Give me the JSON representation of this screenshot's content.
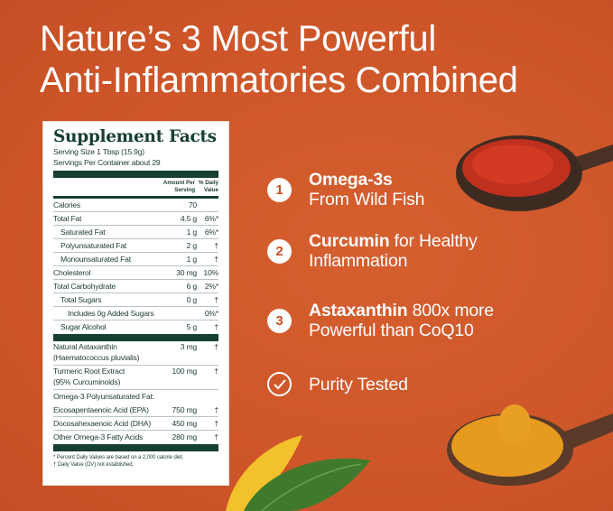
{
  "headline": {
    "line1": "Nature’s 3 Most Powerful",
    "line2": "Anti-Inflammatories Combined"
  },
  "colors": {
    "background": "#d0592b",
    "panel_green": "#163f33",
    "text": "#ffffff"
  },
  "facts": {
    "title": "Supplement Facts",
    "serving_size": "Serving Size 1 Tbsp (15.9g)",
    "servings_per_container": "Servings Per Container about 29",
    "col_amount": "Amount Per Serving",
    "col_dv": "% Daily Value",
    "rows": [
      {
        "name": "Calories",
        "amount": "70",
        "dv": ""
      },
      {
        "name": "Total Fat",
        "amount": "4.5 g",
        "dv": "6%*"
      },
      {
        "name": "Saturated Fat",
        "amount": "1 g",
        "dv": "6%*"
      },
      {
        "name": "Polyunsaturated Fat",
        "amount": "2 g",
        "dv": "†"
      },
      {
        "name": "Monounsaturated Fat",
        "amount": "1 g",
        "dv": "†"
      },
      {
        "name": "Cholesterol",
        "amount": "30 mg",
        "dv": "10%"
      },
      {
        "name": "Total Carbohydrate",
        "amount": "6 g",
        "dv": "2%*"
      },
      {
        "name": "Total Sugars",
        "amount": "0 g",
        "dv": "†"
      },
      {
        "name": "Includes 0g Added Sugars",
        "amount": "",
        "dv": "0%*"
      },
      {
        "name": "Sugar Alcohol",
        "amount": "5 g",
        "dv": "†"
      }
    ],
    "rows2": [
      {
        "name": "Natural Astaxanthin",
        "sub": "(Haematococcus pluvialis)",
        "amount": "3 mg",
        "dv": "†"
      },
      {
        "name": "Turmeric Root Extract",
        "sub": "(95% Curcuminoids)",
        "amount": "100 mg",
        "dv": "†"
      },
      {
        "name": "Omega-3 Polyunsaturated Fat:",
        "amount": "",
        "dv": ""
      },
      {
        "name": "Eicosapentaenoic Acid (EPA)",
        "amount": "750 mg",
        "dv": "†"
      },
      {
        "name": "Docosahexaenoic Acid (DHA)",
        "amount": "450 mg",
        "dv": "†"
      },
      {
        "name": "Other Omega-3 Fatty Acids",
        "amount": "280 mg",
        "dv": "†"
      }
    ],
    "footnote1": "* Percent Daily Values are based on a 2,000 calorie diet.",
    "footnote2": "† Daily Value (DV) not established."
  },
  "features": [
    {
      "number": "1",
      "bold": "Omega-3s",
      "rest": "",
      "line2": "From Wild Fish"
    },
    {
      "number": "2",
      "bold": "Curcumin",
      "rest": " for Healthy",
      "line2": "Inflammation"
    },
    {
      "number": "3",
      "bold": "Astaxanthin",
      "rest": " 800x more",
      "line2": "Powerful than CoQ10"
    },
    {
      "icon": "check-circle-icon",
      "label": "Purity Tested"
    }
  ]
}
